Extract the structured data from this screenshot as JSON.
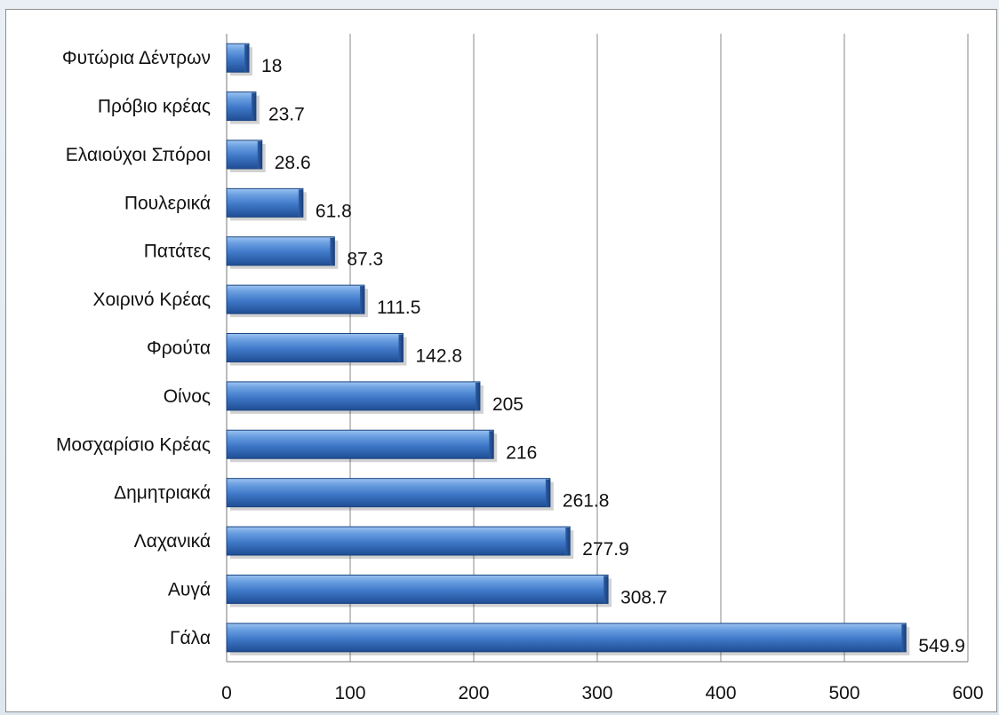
{
  "chart_data": {
    "type": "bar",
    "orientation": "horizontal",
    "title": "",
    "xlabel": "",
    "ylabel": "",
    "categories": [
      "Φυτώρια Δέντρων",
      "Πρόβιο κρέας",
      "Ελαιούχοι Σπόροι",
      "Πουλερικά",
      "Πατάτες",
      "Χοιρινό Κρέας",
      "Φρούτα",
      "Οίνος",
      "Μοσχαρίσιο Κρέας",
      "Δημητριακά",
      "Λαχανικά",
      "Αυγά",
      "Γάλα"
    ],
    "values": [
      18,
      23.7,
      28.6,
      61.8,
      87.3,
      111.5,
      142.8,
      205,
      216,
      261.8,
      277.9,
      308.7,
      549.9
    ],
    "value_labels": [
      "18",
      "23.7",
      "28.6",
      "61.8",
      "87.3",
      "111.5",
      "142.8",
      "205",
      "216",
      "261.8",
      "277.9",
      "308.7",
      "549.9"
    ],
    "xlim": [
      0,
      600
    ],
    "xticks": [
      0,
      100,
      200,
      300,
      400,
      500,
      600
    ],
    "xtick_labels": [
      "0",
      "100",
      "200",
      "300",
      "400",
      "500",
      "600"
    ],
    "grid": "vertical",
    "legend": "none",
    "bar_color": "#3f78c8"
  }
}
